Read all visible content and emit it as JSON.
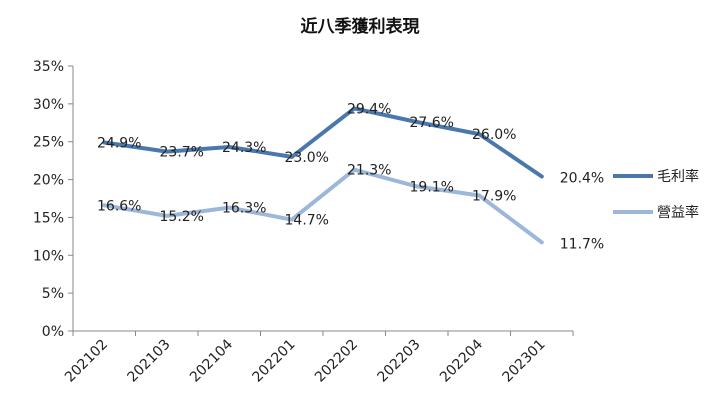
{
  "chart_data": {
    "type": "line",
    "title": "近八季獲利表現",
    "categories": [
      "202102",
      "202103",
      "202104",
      "202201",
      "202202",
      "202203",
      "202204",
      "202301"
    ],
    "ylim": [
      0,
      35
    ],
    "yticks": [
      "0%",
      "5%",
      "10%",
      "15%",
      "20%",
      "25%",
      "30%",
      "35%"
    ],
    "grid": false,
    "legend": "right",
    "series": [
      {
        "name": "毛利率",
        "color": "#4a78ac",
        "values": [
          24.9,
          23.7,
          24.3,
          23.0,
          29.4,
          27.6,
          26.0,
          20.4
        ],
        "labels": [
          "24.9%",
          "23.7%",
          "24.3%",
          "23.0%",
          "29.4%",
          "27.6%",
          "26.0%",
          "20.4%"
        ]
      },
      {
        "name": "營益率",
        "color": "#9db7d9",
        "values": [
          16.6,
          15.2,
          16.3,
          14.7,
          21.3,
          19.1,
          17.9,
          11.7
        ],
        "labels": [
          "16.6%",
          "15.2%",
          "16.3%",
          "14.7%",
          "21.3%",
          "19.1%",
          "17.9%",
          "11.7%"
        ]
      }
    ]
  }
}
